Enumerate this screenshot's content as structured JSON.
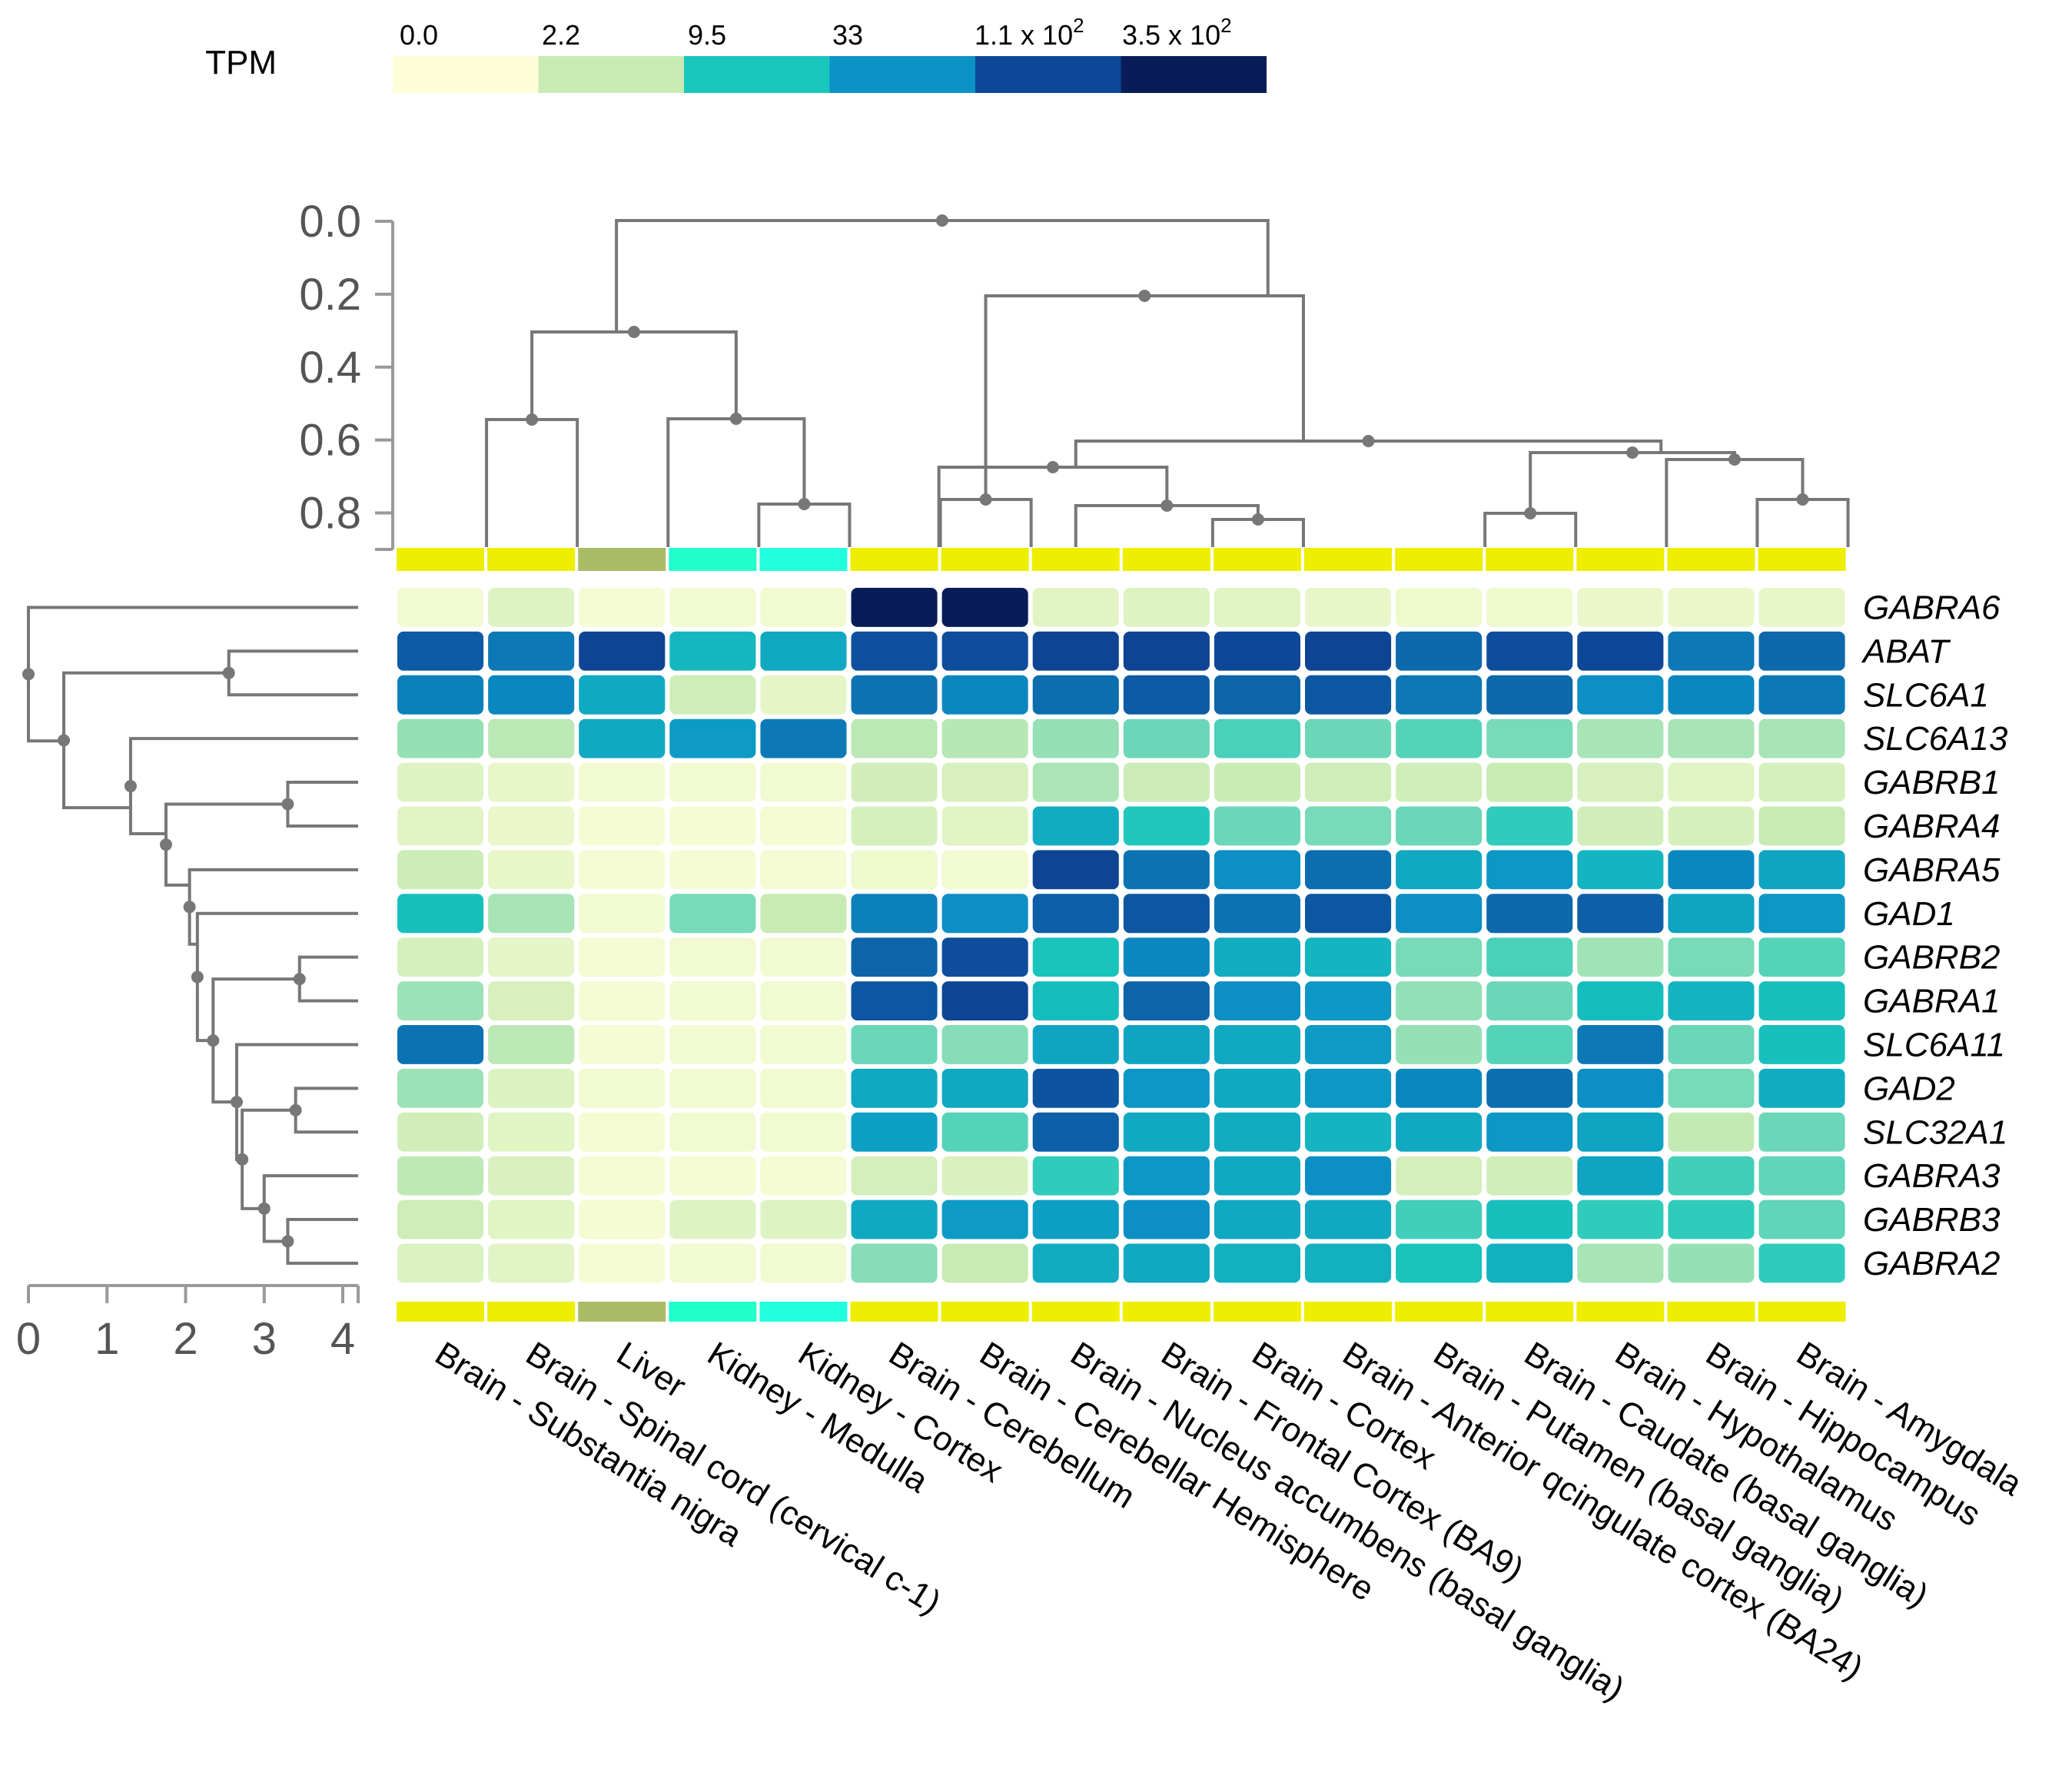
{
  "chart_data": {
    "type": "heatmap",
    "title": "",
    "xlabel": "",
    "ylabel": "",
    "legend": {
      "title": "TPM",
      "labels": [
        "0.0",
        "2.2",
        "9.5",
        "33",
        "1.1 x 10",
        "3.5 x 10"
      ],
      "label_exponents": [
        "",
        "",
        "",
        "",
        "2",
        "2"
      ],
      "colors": [
        "#fdfed8",
        "#c8ebb4",
        "#19c6bc",
        "#0b93c6",
        "#0e4798",
        "#081d58"
      ]
    },
    "columns": [
      "Brain - Substantia nigra",
      "Brain - Spinal cord (cervical c-1)",
      "Liver",
      "Kidney - Medulla",
      "Kidney - Cortex",
      "Brain - Cerebellum",
      "Brain - Cerebellar Hemisphere",
      "Brain - Nucleus accumbens (basal ganglia)",
      "Brain - Frontal Cortex (BA9)",
      "Brain - Cortex",
      "Brain - Anterior qcingulate cortex (BA24)",
      "Brain - Putamen (basal ganglia)",
      "Brain - Caudate (basal ganglia)",
      "Brain - Hypothalamus",
      "Brain - Hippocampus",
      "Brain - Amygdala"
    ],
    "column_tissue_colors": [
      "#eeee00",
      "#eeee00",
      "#aabb66",
      "#22ffcc",
      "#22ffdd",
      "#eeee00",
      "#eeee00",
      "#eeee00",
      "#eeee00",
      "#eeee00",
      "#eeee00",
      "#eeee00",
      "#eeee00",
      "#eeee00",
      "#eeee00",
      "#eeee00"
    ],
    "rows": [
      "GABRA6",
      "ABAT",
      "SLC6A1",
      "SLC6A13",
      "GABRB1",
      "GABRA4",
      "GABRA5",
      "GAD1",
      "GABRB2",
      "GABRA1",
      "SLC6A11",
      "GAD2",
      "SLC32A1",
      "GABRA3",
      "GABRB3",
      "GABRA2"
    ],
    "color_scale_breaks": [
      0,
      2.2,
      9.5,
      33,
      110,
      350
    ],
    "values": [
      [
        0.3,
        1.0,
        0.2,
        0.3,
        0.3,
        380,
        460,
        0.8,
        1.0,
        0.9,
        0.6,
        0.4,
        0.4,
        0.5,
        0.5,
        0.6
      ],
      [
        80,
        50,
        120,
        14,
        20,
        95,
        100,
        120,
        120,
        110,
        120,
        65,
        100,
        110,
        50,
        65
      ],
      [
        45,
        40,
        20,
        1.8,
        0.7,
        55,
        40,
        60,
        80,
        70,
        85,
        50,
        65,
        35,
        40,
        50
      ],
      [
        3.5,
        2.5,
        20,
        28,
        50,
        2.5,
        2.6,
        3.5,
        5,
        6.5,
        5,
        6,
        4.5,
        3.0,
        3.0,
        3.0
      ],
      [
        1.0,
        0.6,
        0.3,
        0.3,
        0.3,
        1.6,
        1.3,
        2.9,
        2.0,
        2.1,
        1.8,
        1.7,
        2.2,
        1.3,
        0.9,
        1.4
      ],
      [
        0.8,
        0.5,
        0.2,
        0.2,
        0.2,
        1.4,
        0.9,
        18,
        9,
        5,
        4.5,
        5,
        8,
        1.6,
        1.4,
        2.2
      ],
      [
        1.9,
        0.6,
        0.2,
        0.2,
        0.2,
        0.4,
        0.3,
        120,
        55,
        35,
        60,
        20,
        30,
        15,
        40,
        22
      ],
      [
        11,
        3.0,
        0.3,
        4.5,
        2.2,
        45,
        35,
        75,
        85,
        55,
        85,
        35,
        65,
        75,
        22,
        30
      ],
      [
        1.4,
        0.7,
        0.2,
        0.3,
        0.3,
        70,
        100,
        10,
        40,
        18,
        15,
        4.5,
        6.5,
        3.2,
        4.5,
        6
      ],
      [
        3.3,
        1.3,
        0.2,
        0.3,
        0.3,
        85,
        120,
        12,
        70,
        35,
        30,
        3.6,
        5,
        12,
        15,
        11
      ],
      [
        55,
        2.5,
        0.2,
        0.3,
        0.3,
        5,
        4,
        22,
        22,
        20,
        28,
        3.5,
        6,
        50,
        5,
        11
      ],
      [
        3.3,
        1.1,
        0.3,
        0.3,
        0.3,
        20,
        20,
        90,
        30,
        20,
        30,
        40,
        60,
        35,
        4.5,
        18
      ],
      [
        1.6,
        0.9,
        0.2,
        0.3,
        0.3,
        25,
        6,
        75,
        20,
        18,
        15,
        20,
        30,
        22,
        2.3,
        5
      ],
      [
        2.4,
        1.2,
        0.2,
        0.2,
        0.2,
        1.5,
        1.2,
        8,
        30,
        20,
        35,
        1.5,
        1.7,
        22,
        7,
        5.5
      ],
      [
        1.8,
        0.9,
        0.2,
        1.0,
        1.0,
        20,
        28,
        25,
        35,
        20,
        20,
        7,
        11,
        8,
        8,
        5.5
      ],
      [
        1.1,
        0.8,
        0.2,
        0.3,
        0.3,
        4,
        2.2,
        18,
        20,
        16,
        16,
        10,
        16,
        3.0,
        3.5,
        8
      ]
    ],
    "top_axis": {
      "ticks": [
        "0.0",
        "0.2",
        "0.4",
        "0.6",
        "0.8"
      ],
      "range": [
        0.0,
        0.9
      ]
    },
    "left_axis": {
      "ticks": [
        "0",
        "1",
        "2",
        "3",
        "4"
      ],
      "range": [
        0,
        4
      ]
    }
  }
}
